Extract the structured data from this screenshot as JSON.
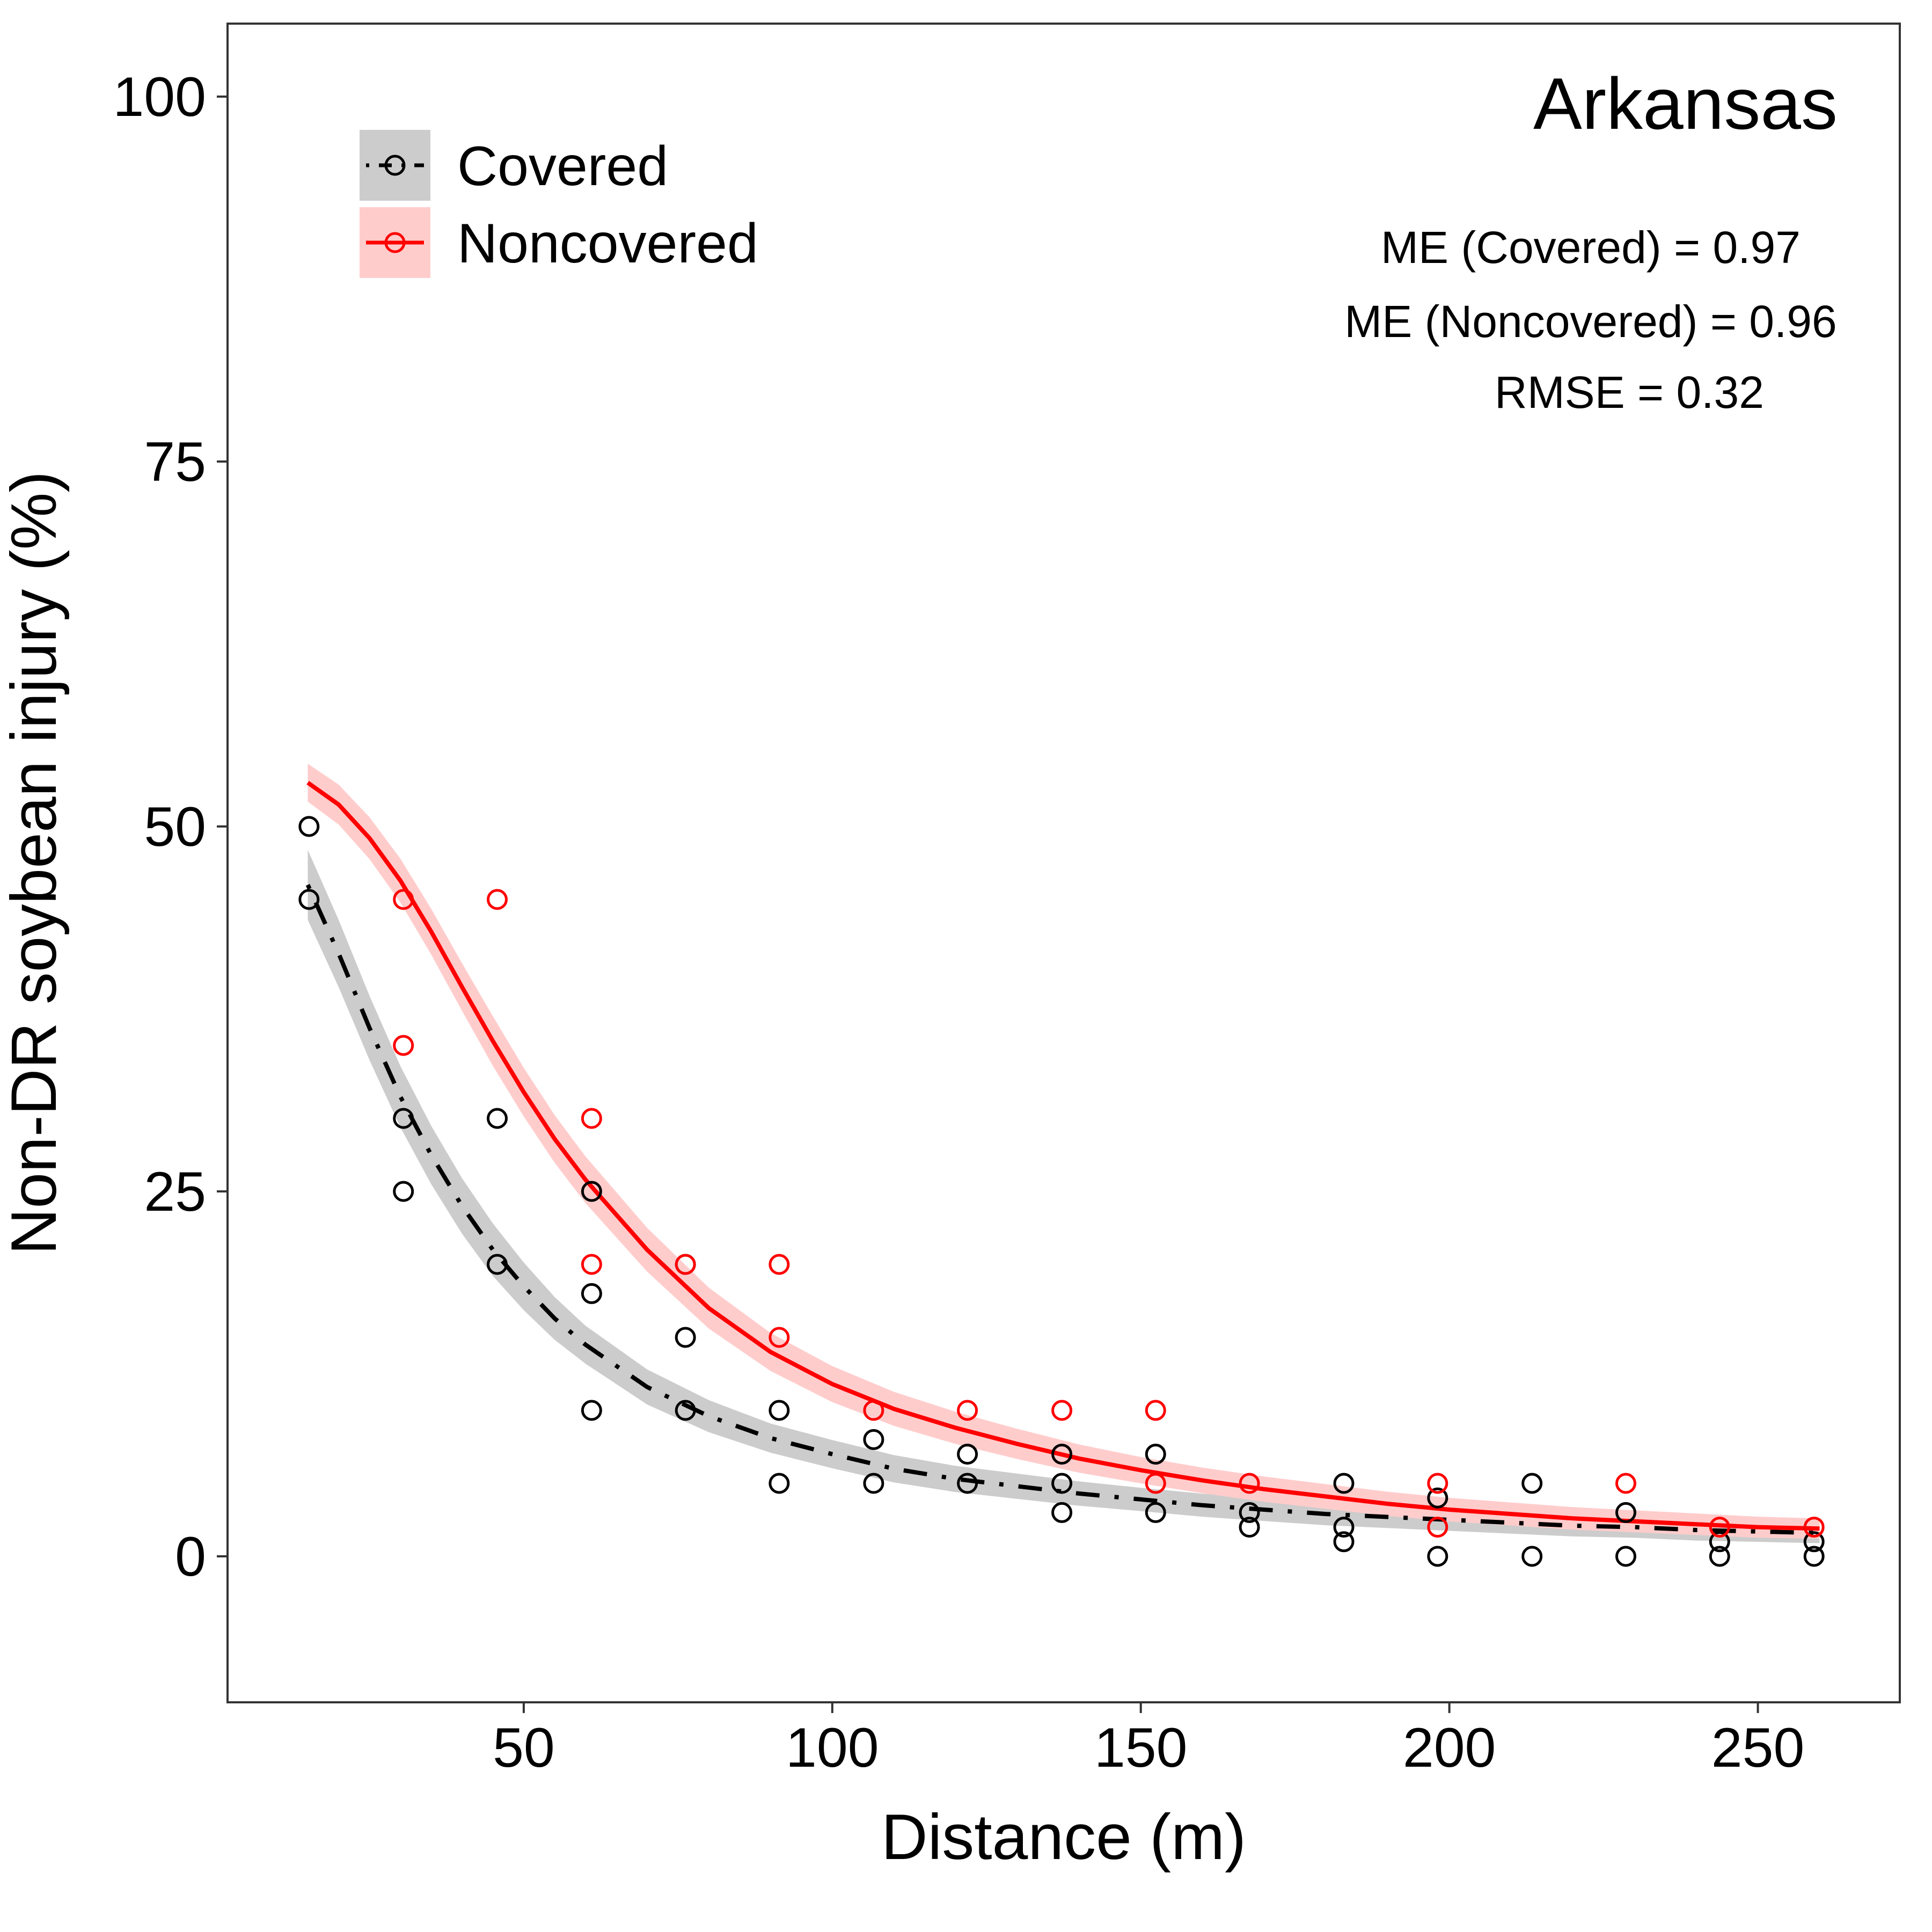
{
  "chart_data": {
    "type": "scatter",
    "title": "Arkansas",
    "xlabel": "Distance (m)",
    "ylabel": "Non-DR soybean injury (%)",
    "xlim": [
      2,
      273
    ],
    "ylim": [
      -10,
      105
    ],
    "xticks": [
      50,
      100,
      150,
      200,
      250
    ],
    "yticks": [
      0,
      25,
      50,
      75,
      100
    ],
    "grid": false,
    "legend_position": "top-left",
    "annotations": [
      "ME (Covered) = 0.97",
      "ME (Noncovered) = 0.96",
      "RMSE = 0.32"
    ],
    "series": [
      {
        "name": "Covered",
        "color": "#000000",
        "band_color": "#cccccc",
        "line_style": "dotdash",
        "points": [
          [
            15.2,
            50
          ],
          [
            15.2,
            45
          ],
          [
            30.5,
            30
          ],
          [
            30.5,
            25
          ],
          [
            45.7,
            30
          ],
          [
            45.7,
            20
          ],
          [
            61,
            25
          ],
          [
            61,
            18
          ],
          [
            61,
            10
          ],
          [
            76.2,
            20
          ],
          [
            76.2,
            15
          ],
          [
            76.2,
            10
          ],
          [
            91.4,
            10
          ],
          [
            91.4,
            5
          ],
          [
            106.7,
            8
          ],
          [
            106.7,
            5
          ],
          [
            121.9,
            7
          ],
          [
            121.9,
            5
          ],
          [
            137.2,
            7
          ],
          [
            137.2,
            5
          ],
          [
            137.2,
            3
          ],
          [
            152.4,
            7
          ],
          [
            152.4,
            3
          ],
          [
            167.6,
            3
          ],
          [
            167.6,
            2
          ],
          [
            182.9,
            5
          ],
          [
            182.9,
            2
          ],
          [
            182.9,
            1
          ],
          [
            198.1,
            4
          ],
          [
            198.1,
            0
          ],
          [
            213.4,
            5
          ],
          [
            213.4,
            0
          ],
          [
            228.6,
            3
          ],
          [
            228.6,
            0
          ],
          [
            243.8,
            1
          ],
          [
            243.8,
            0
          ],
          [
            259.1,
            1
          ],
          [
            259.1,
            0
          ]
        ],
        "curve": [
          [
            15,
            46
          ],
          [
            20,
            41.3
          ],
          [
            25,
            36.2
          ],
          [
            30,
            31.5
          ],
          [
            35,
            27.5
          ],
          [
            40,
            24
          ],
          [
            45,
            21
          ],
          [
            50,
            18.5
          ],
          [
            55,
            16.3
          ],
          [
            60,
            14.5
          ],
          [
            70,
            11.6
          ],
          [
            80,
            9.6
          ],
          [
            90,
            8.1
          ],
          [
            100,
            7
          ],
          [
            110,
            6
          ],
          [
            120,
            5.3
          ],
          [
            130,
            4.8
          ],
          [
            140,
            4.3
          ],
          [
            150,
            3.9
          ],
          [
            160,
            3.5
          ],
          [
            170,
            3.2
          ],
          [
            180,
            2.9
          ],
          [
            190,
            2.7
          ],
          [
            200,
            2.5
          ],
          [
            210,
            2.3
          ],
          [
            220,
            2.1
          ],
          [
            230,
            2
          ],
          [
            240,
            1.8
          ],
          [
            250,
            1.7
          ],
          [
            260,
            1.6
          ]
        ],
        "band_halfwidth": [
          [
            15,
            2.4
          ],
          [
            30,
            2.1
          ],
          [
            45,
            1.8
          ],
          [
            60,
            1.3
          ],
          [
            90,
            1
          ],
          [
            150,
            0.8
          ],
          [
            260,
            0.7
          ]
        ]
      },
      {
        "name": "Noncovered",
        "color": "#ff0000",
        "band_color": "#ffcccc",
        "line_style": "solid",
        "points": [
          [
            30.5,
            45
          ],
          [
            30.5,
            35
          ],
          [
            45.7,
            45
          ],
          [
            61,
            30
          ],
          [
            61,
            20
          ],
          [
            76.2,
            20
          ],
          [
            91.4,
            20
          ],
          [
            91.4,
            15
          ],
          [
            106.7,
            10
          ],
          [
            121.9,
            10
          ],
          [
            137.2,
            10
          ],
          [
            152.4,
            10
          ],
          [
            152.4,
            5
          ],
          [
            167.6,
            5
          ],
          [
            198.1,
            5
          ],
          [
            198.1,
            2
          ],
          [
            228.6,
            5
          ],
          [
            243.8,
            2
          ],
          [
            259.1,
            2
          ]
        ],
        "curve": [
          [
            15,
            53
          ],
          [
            20,
            51.5
          ],
          [
            25,
            49.2
          ],
          [
            30,
            46.3
          ],
          [
            35,
            42.8
          ],
          [
            40,
            39
          ],
          [
            45,
            35.3
          ],
          [
            50,
            31.8
          ],
          [
            55,
            28.6
          ],
          [
            60,
            25.8
          ],
          [
            70,
            21
          ],
          [
            80,
            17
          ],
          [
            90,
            14
          ],
          [
            100,
            11.8
          ],
          [
            110,
            10.1
          ],
          [
            120,
            8.8
          ],
          [
            130,
            7.7
          ],
          [
            140,
            6.7
          ],
          [
            150,
            5.9
          ],
          [
            160,
            5.2
          ],
          [
            170,
            4.6
          ],
          [
            180,
            4.1
          ],
          [
            190,
            3.6
          ],
          [
            200,
            3.2
          ],
          [
            210,
            2.9
          ],
          [
            220,
            2.6
          ],
          [
            230,
            2.4
          ],
          [
            240,
            2.2
          ],
          [
            250,
            2
          ],
          [
            260,
            1.9
          ]
        ],
        "band_halfwidth": [
          [
            15,
            1.3
          ],
          [
            30,
            1.5
          ],
          [
            45,
            1.7
          ],
          [
            60,
            1.6
          ],
          [
            90,
            1.3
          ],
          [
            150,
            0.9
          ],
          [
            260,
            0.7
          ]
        ]
      }
    ]
  }
}
